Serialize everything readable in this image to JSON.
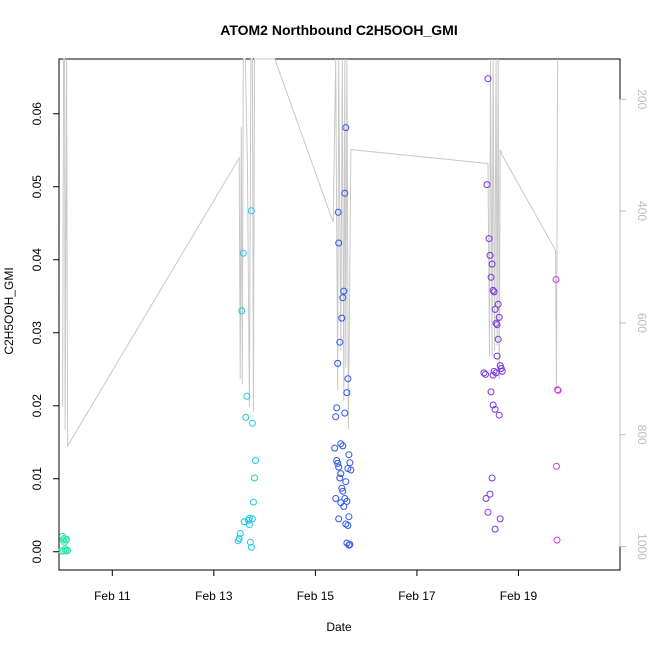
{
  "chart_data": {
    "type": "scatter",
    "title": "ATOM2 Northbound C2H5OOH_GMI",
    "xlabel": "Date",
    "ylabel": "C2H5OOH_GMI",
    "x_unit": "day",
    "xlim": [
      9.95,
      21.0
    ],
    "ylim": [
      -0.0025,
      0.0675
    ],
    "x_ticks": [
      {
        "value": 11,
        "label": "Feb 11"
      },
      {
        "value": 13,
        "label": "Feb 13"
      },
      {
        "value": 15,
        "label": "Feb 15"
      },
      {
        "value": 17,
        "label": "Feb 17"
      },
      {
        "value": 19,
        "label": "Feb 19"
      }
    ],
    "y_ticks": [
      {
        "value": 0.0,
        "label": "0.00"
      },
      {
        "value": 0.01,
        "label": "0.01"
      },
      {
        "value": 0.02,
        "label": "0.02"
      },
      {
        "value": 0.03,
        "label": "0.03"
      },
      {
        "value": 0.04,
        "label": "0.04"
      },
      {
        "value": 0.05,
        "label": "0.05"
      },
      {
        "value": 0.06,
        "label": "0.06"
      }
    ],
    "y2_axis": {
      "range": [
        128,
        1042
      ],
      "reversed": true,
      "color": "#bdbdbd",
      "ticks": [
        {
          "value": 200,
          "label": "200"
        },
        {
          "value": 400,
          "label": "400"
        },
        {
          "value": 600,
          "label": "600"
        },
        {
          "value": 800,
          "label": "800"
        },
        {
          "value": 1000,
          "label": "1000"
        }
      ]
    },
    "grid": false,
    "legend": "none",
    "pressure_line_color": "#c8c8c8",
    "pressure_line": [
      [
        10.02,
        750
      ],
      [
        10.04,
        120
      ],
      [
        10.06,
        120
      ],
      [
        10.07,
        790
      ],
      [
        10.09,
        330
      ],
      [
        10.1,
        120
      ],
      [
        10.12,
        820
      ],
      [
        13.5,
        305
      ],
      [
        13.52,
        700
      ],
      [
        13.54,
        250
      ],
      [
        13.56,
        710
      ],
      [
        13.58,
        120
      ],
      [
        13.62,
        120
      ],
      [
        13.66,
        310
      ],
      [
        13.7,
        750
      ],
      [
        13.73,
        120
      ],
      [
        13.76,
        120
      ],
      [
        13.78,
        760
      ],
      [
        13.8,
        120
      ],
      [
        13.83,
        120
      ],
      [
        14.2,
        128
      ],
      [
        15.35,
        420
      ],
      [
        15.4,
        120
      ],
      [
        15.44,
        720
      ],
      [
        15.46,
        120
      ],
      [
        15.5,
        650
      ],
      [
        15.53,
        120
      ],
      [
        15.56,
        740
      ],
      [
        15.58,
        120
      ],
      [
        15.6,
        680
      ],
      [
        15.62,
        120
      ],
      [
        15.65,
        790
      ],
      [
        15.7,
        290
      ],
      [
        18.4,
        315
      ],
      [
        18.43,
        660
      ],
      [
        18.45,
        120
      ],
      [
        18.48,
        660
      ],
      [
        18.5,
        120
      ],
      [
        18.53,
        650
      ],
      [
        18.56,
        120
      ],
      [
        18.58,
        640
      ],
      [
        18.6,
        120
      ],
      [
        18.62,
        700
      ],
      [
        18.64,
        290
      ],
      [
        18.68,
        300
      ],
      [
        19.73,
        470
      ],
      [
        19.75,
        715
      ],
      [
        19.77,
        120
      ]
    ],
    "series": [
      {
        "color": "#31e6b0",
        "x": [
          10.0,
          10.02,
          10.03,
          10.04,
          10.05,
          10.06,
          10.07,
          10.08,
          10.09,
          10.1,
          10.11,
          10.12
        ],
        "y": [
          0.0001,
          0.0021,
          0.0016,
          0.0001,
          0.0018,
          0.0013,
          0.0004,
          0.0002,
          0.0016,
          0.0017,
          0.0001,
          0.0002
        ]
      },
      {
        "color": "#1ec8e8",
        "x": [
          13.48,
          13.5,
          13.52,
          13.55,
          13.58,
          13.6,
          13.63,
          13.65,
          13.68,
          13.7,
          13.72,
          13.74,
          13.76,
          13.78,
          13.8,
          13.82,
          13.6,
          13.7,
          13.74,
          13.76
        ],
        "y": [
          0.0015,
          0.0018,
          0.0025,
          0.033,
          0.0409,
          0.0041,
          0.0184,
          0.0213,
          0.0043,
          0.0037,
          0.0013,
          0.0006,
          0.0045,
          0.0068,
          0.0101,
          0.0125,
          0.0041,
          0.0046,
          0.0467,
          0.0176
        ]
      },
      {
        "color": "#2e57e8",
        "x": [
          15.38,
          15.4,
          15.42,
          15.44,
          15.45,
          15.46,
          15.48,
          15.5,
          15.52,
          15.54,
          15.56,
          15.58,
          15.6,
          15.62,
          15.64,
          15.66,
          15.68,
          15.7,
          15.42,
          15.46,
          15.5,
          15.54,
          15.58,
          15.62,
          15.66,
          15.44,
          15.48,
          15.52,
          15.56,
          15.6,
          15.64,
          15.68,
          15.5,
          15.58,
          15.62,
          15.66,
          15.4,
          15.46,
          15.54,
          15.6,
          15.64
        ],
        "y": [
          0.0142,
          0.0185,
          0.0197,
          0.0258,
          0.0465,
          0.0423,
          0.0287,
          0.0148,
          0.032,
          0.0348,
          0.0357,
          0.0491,
          0.0581,
          0.0218,
          0.0237,
          0.0133,
          0.0122,
          0.0112,
          0.0125,
          0.0116,
          0.0107,
          0.0083,
          0.0073,
          0.0069,
          0.0048,
          0.0121,
          0.0101,
          0.0087,
          0.0062,
          0.0038,
          0.0036,
          0.001,
          0.0067,
          0.019,
          0.0012,
          0.0009,
          0.0073,
          0.0045,
          0.0145,
          0.0096,
          0.0114
        ]
      },
      {
        "color": "#7a35e0",
        "x": [
          18.32,
          18.35,
          18.38,
          18.4,
          18.42,
          18.44,
          18.46,
          18.48,
          18.5,
          18.52,
          18.54,
          18.56,
          18.58,
          18.6,
          18.62,
          18.64,
          18.66,
          18.68,
          18.46,
          18.5,
          18.54,
          18.58,
          18.62,
          18.36,
          18.4,
          18.44,
          18.48,
          18.52,
          18.56,
          18.6,
          18.64,
          18.5,
          18.54
        ],
        "y": [
          0.0245,
          0.0243,
          0.0503,
          0.0648,
          0.0429,
          0.0406,
          0.0376,
          0.0394,
          0.0358,
          0.0356,
          0.0332,
          0.0313,
          0.0311,
          0.0339,
          0.0321,
          0.0255,
          0.0251,
          0.0247,
          0.0219,
          0.0201,
          0.0195,
          0.0268,
          0.0187,
          0.0073,
          0.0054,
          0.0079,
          0.0101,
          0.0247,
          0.0245,
          0.0291,
          0.0045,
          0.0242,
          0.0031
        ]
      },
      {
        "color": "#e033e8",
        "x": [
          19.74,
          19.75,
          19.76,
          19.77,
          19.78
        ],
        "y": [
          0.0373,
          0.0117,
          0.0016,
          0.0222,
          0.0221
        ]
      }
    ]
  }
}
